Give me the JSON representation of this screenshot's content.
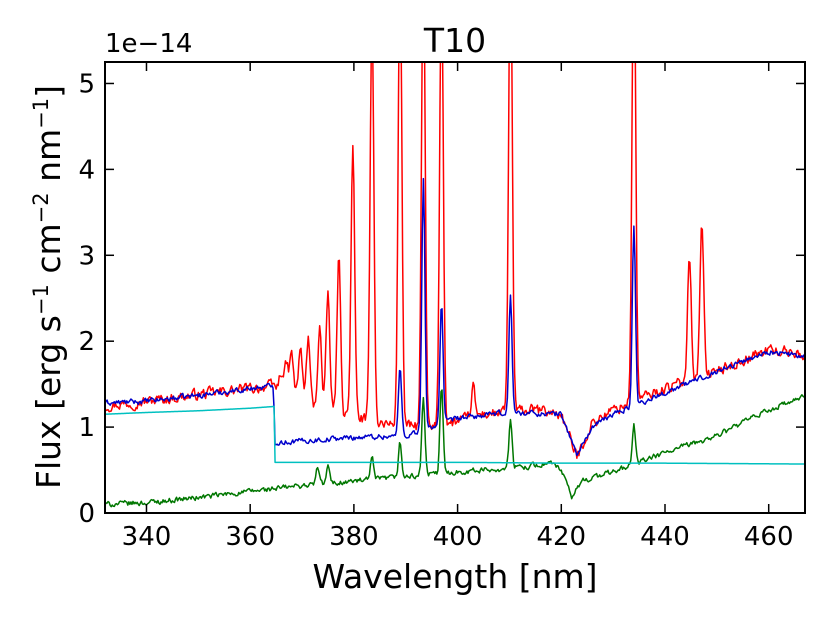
{
  "chart_data": {
    "type": "line",
    "title": "T10",
    "xlabel": "Wavelength [nm]",
    "ylabel_parts": {
      "a": "Flux [erg s",
      "b": "−1",
      "c": " cm",
      "d": "−2",
      "e": " nm",
      "f": "−1",
      "g": "]"
    },
    "y_offset_label": "1e−14",
    "xlim": [
      332,
      467
    ],
    "ylim": [
      0,
      5.25
    ],
    "grid": false,
    "x_ticks": [
      340,
      360,
      380,
      400,
      420,
      440,
      460
    ],
    "x_tick_labels": [
      "340",
      "360",
      "380",
      "400",
      "420",
      "440",
      "460"
    ],
    "y_ticks": [
      0,
      1,
      2,
      3,
      4,
      5
    ],
    "y_tick_labels": [
      "0",
      "1",
      "2",
      "3",
      "4",
      "5"
    ],
    "series": [
      {
        "color": "#ff0000",
        "continuum": [
          [
            332,
            1.25
          ],
          [
            340,
            1.3
          ],
          [
            350,
            1.38
          ],
          [
            360,
            1.45
          ],
          [
            364.5,
            1.48
          ],
          [
            368,
            1.4
          ],
          [
            372,
            1.25
          ],
          [
            378,
            1.15
          ],
          [
            385,
            1.05
          ],
          [
            395,
            0.98
          ],
          [
            405,
            1.15
          ],
          [
            415,
            1.2
          ],
          [
            420,
            1.15
          ],
          [
            423,
            0.65
          ],
          [
            426,
            1.05
          ],
          [
            430,
            1.2
          ],
          [
            440,
            1.45
          ],
          [
            450,
            1.65
          ],
          [
            460,
            1.9
          ],
          [
            467,
            1.85
          ]
        ],
        "noise": 0.1,
        "peaks": [
          [
            366.0,
            0.2
          ],
          [
            367.0,
            0.3
          ],
          [
            368.0,
            0.45
          ],
          [
            369.7,
            0.6
          ],
          [
            371.2,
            0.75
          ],
          [
            373.4,
            0.95
          ],
          [
            375.0,
            1.35
          ],
          [
            377.1,
            1.8
          ],
          [
            379.8,
            3.1
          ],
          [
            383.5,
            4.8
          ],
          [
            388.9,
            5.5
          ],
          [
            393.4,
            5.5
          ],
          [
            396.9,
            5.3
          ],
          [
            403.0,
            0.35
          ],
          [
            410.2,
            5.5
          ],
          [
            434.0,
            5.5
          ],
          [
            444.7,
            1.5
          ],
          [
            447.1,
            1.85
          ]
        ],
        "peak_width": 0.35
      },
      {
        "color": "#0000cc",
        "continuum": [
          [
            332,
            1.28
          ],
          [
            340,
            1.3
          ],
          [
            350,
            1.37
          ],
          [
            360,
            1.45
          ],
          [
            364.5,
            1.48
          ],
          [
            364.8,
            0.82
          ],
          [
            370,
            0.84
          ],
          [
            380,
            0.88
          ],
          [
            390,
            0.9
          ],
          [
            400,
            1.1
          ],
          [
            410,
            1.17
          ],
          [
            420,
            1.15
          ],
          [
            423,
            0.68
          ],
          [
            426,
            1.0
          ],
          [
            430,
            1.15
          ],
          [
            440,
            1.4
          ],
          [
            450,
            1.65
          ],
          [
            460,
            1.88
          ],
          [
            467,
            1.82
          ]
        ],
        "noise": 0.05,
        "peaks": [
          [
            388.9,
            0.8
          ],
          [
            393.4,
            2.9
          ],
          [
            396.9,
            1.4
          ],
          [
            410.2,
            1.35
          ],
          [
            434.0,
            2.1
          ]
        ],
        "peak_width": 0.3
      },
      {
        "color": "#007700",
        "continuum": [
          [
            332,
            0.1
          ],
          [
            340,
            0.12
          ],
          [
            350,
            0.18
          ],
          [
            360,
            0.25
          ],
          [
            370,
            0.32
          ],
          [
            380,
            0.37
          ],
          [
            390,
            0.42
          ],
          [
            400,
            0.48
          ],
          [
            410,
            0.52
          ],
          [
            418,
            0.58
          ],
          [
            420,
            0.5
          ],
          [
            422,
            0.18
          ],
          [
            424,
            0.38
          ],
          [
            430,
            0.48
          ],
          [
            440,
            0.7
          ],
          [
            450,
            0.9
          ],
          [
            460,
            1.2
          ],
          [
            467,
            1.35
          ]
        ],
        "noise": 0.05,
        "peaks": [
          [
            373.0,
            0.2
          ],
          [
            375.0,
            0.2
          ],
          [
            383.5,
            0.25
          ],
          [
            388.9,
            0.4
          ],
          [
            393.4,
            0.9
          ],
          [
            396.9,
            1.0
          ],
          [
            410.2,
            0.55
          ],
          [
            434.0,
            0.45
          ]
        ],
        "peak_width": 0.3
      },
      {
        "color": "#00c0c0",
        "continuum": [
          [
            332,
            1.15
          ],
          [
            340,
            1.17
          ],
          [
            350,
            1.19
          ],
          [
            360,
            1.22
          ],
          [
            364.6,
            1.24
          ],
          [
            364.7,
            0.59
          ],
          [
            380,
            0.59
          ],
          [
            400,
            0.59
          ],
          [
            420,
            0.58
          ],
          [
            440,
            0.58
          ],
          [
            467,
            0.57
          ]
        ],
        "noise": 0,
        "peaks": [],
        "peak_width": 0.3
      }
    ]
  }
}
